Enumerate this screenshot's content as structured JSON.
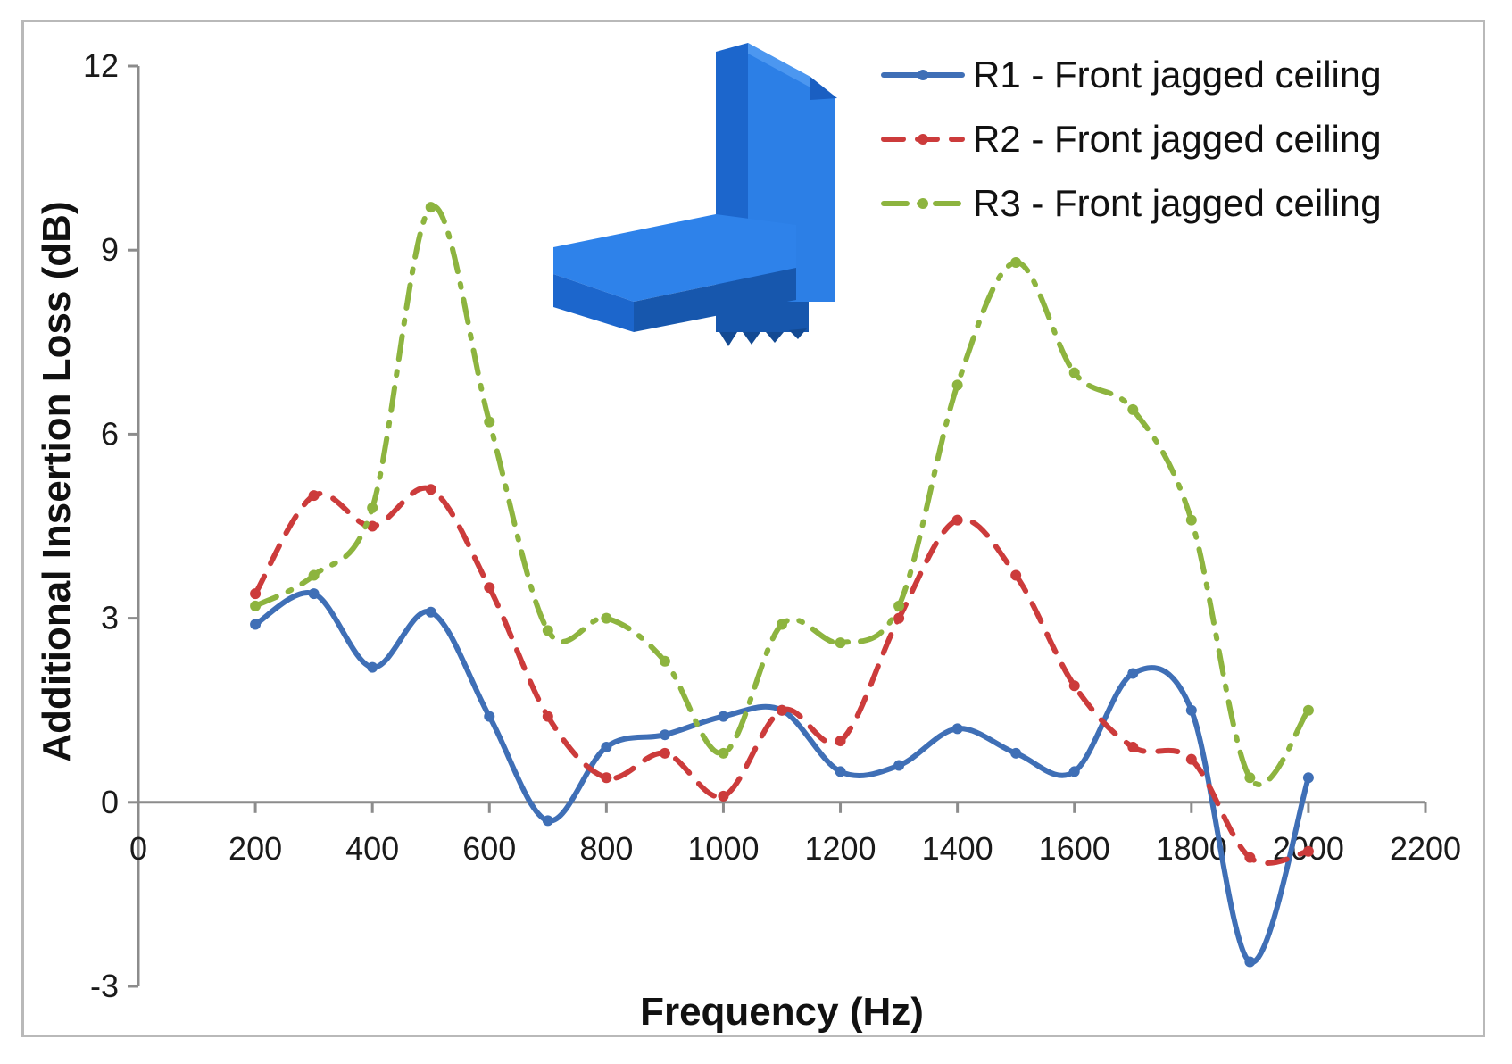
{
  "chart_data": {
    "type": "line",
    "title": "",
    "xlabel": "Frequency (Hz)",
    "ylabel": "Additional Insertion Loss (dB)",
    "xlim": [
      0,
      2200
    ],
    "ylim": [
      -3,
      12
    ],
    "x_ticks": [
      "0",
      "200",
      "400",
      "600",
      "800",
      "1000",
      "1200",
      "1400",
      "1600",
      "1800",
      "2000",
      "2200"
    ],
    "y_ticks": [
      "-3",
      "0",
      "3",
      "6",
      "9",
      "12"
    ],
    "grid": false,
    "legend_position": "top-right",
    "inset": "jagged-ceiling-barrier-3d-illustration",
    "x": [
      200,
      300,
      400,
      500,
      600,
      700,
      800,
      900,
      1000,
      1100,
      1200,
      1300,
      1400,
      1500,
      1600,
      1700,
      1800,
      1900,
      2000
    ],
    "series": [
      {
        "name": "R1 - Front jagged ceiling",
        "color": "#3f6fb6",
        "dash": "solid",
        "values": [
          2.9,
          3.4,
          2.2,
          3.1,
          1.4,
          -0.3,
          0.9,
          1.1,
          1.4,
          1.5,
          0.5,
          0.6,
          1.2,
          0.8,
          0.5,
          2.1,
          1.5,
          -2.6,
          0.4
        ]
      },
      {
        "name": "R2 - Front jagged ceiling",
        "color": "#cc3b3b",
        "dash": "dashed",
        "values": [
          3.4,
          5.0,
          4.5,
          5.1,
          3.5,
          1.4,
          0.4,
          0.8,
          0.1,
          1.5,
          1.0,
          3.0,
          4.6,
          3.7,
          1.9,
          0.9,
          0.7,
          -0.9,
          -0.8
        ]
      },
      {
        "name": "R3 - Front jagged ceiling",
        "color": "#8db43f",
        "dash": "dash-dot",
        "values": [
          3.2,
          3.7,
          4.8,
          9.7,
          6.2,
          2.8,
          3.0,
          2.3,
          0.8,
          2.9,
          2.6,
          3.2,
          6.8,
          8.8,
          7.0,
          6.4,
          4.6,
          0.4,
          1.5
        ]
      }
    ]
  }
}
